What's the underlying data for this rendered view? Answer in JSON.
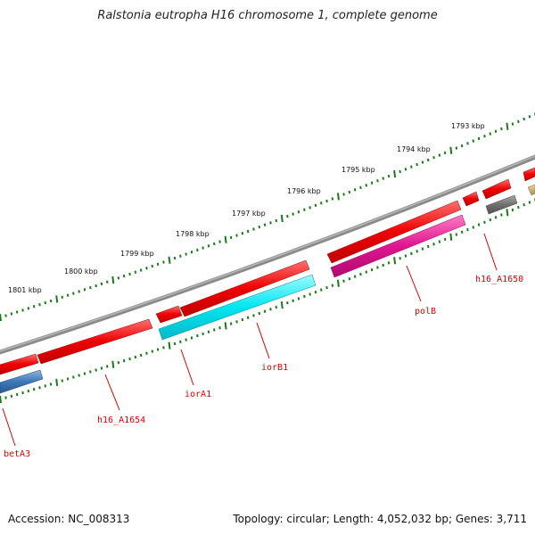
{
  "title": "Ralstonia eutropha H16 chromosome 1, complete genome",
  "footer": {
    "accession": "Accession: NC_008313",
    "summary": "Topology: circular; Length: 4,052,032 bp; Genes: 3,711"
  },
  "colors": {
    "backbone": "#8a8a8a",
    "ticks": "#1a7a1a",
    "gene_red": "#ee0000",
    "gene_cyan": "#00e5f0",
    "gene_magenta": "#e0158f",
    "gene_blue": "#3d78b8",
    "gene_gray": "#707070",
    "gene_khaki": "#c8b078",
    "label": "#e00000"
  },
  "kbp_labels": [
    "1793 kbp",
    "1794 kbp",
    "1795 kbp",
    "1796 kbp",
    "1797 kbp",
    "1798 kbp",
    "1799 kbp",
    "1800 kbp",
    "1801 kbp"
  ],
  "gene_labels": [
    "h16_A1650",
    "polB",
    "iorB1",
    "iorA1",
    "h16_A1654",
    "betA3"
  ]
}
